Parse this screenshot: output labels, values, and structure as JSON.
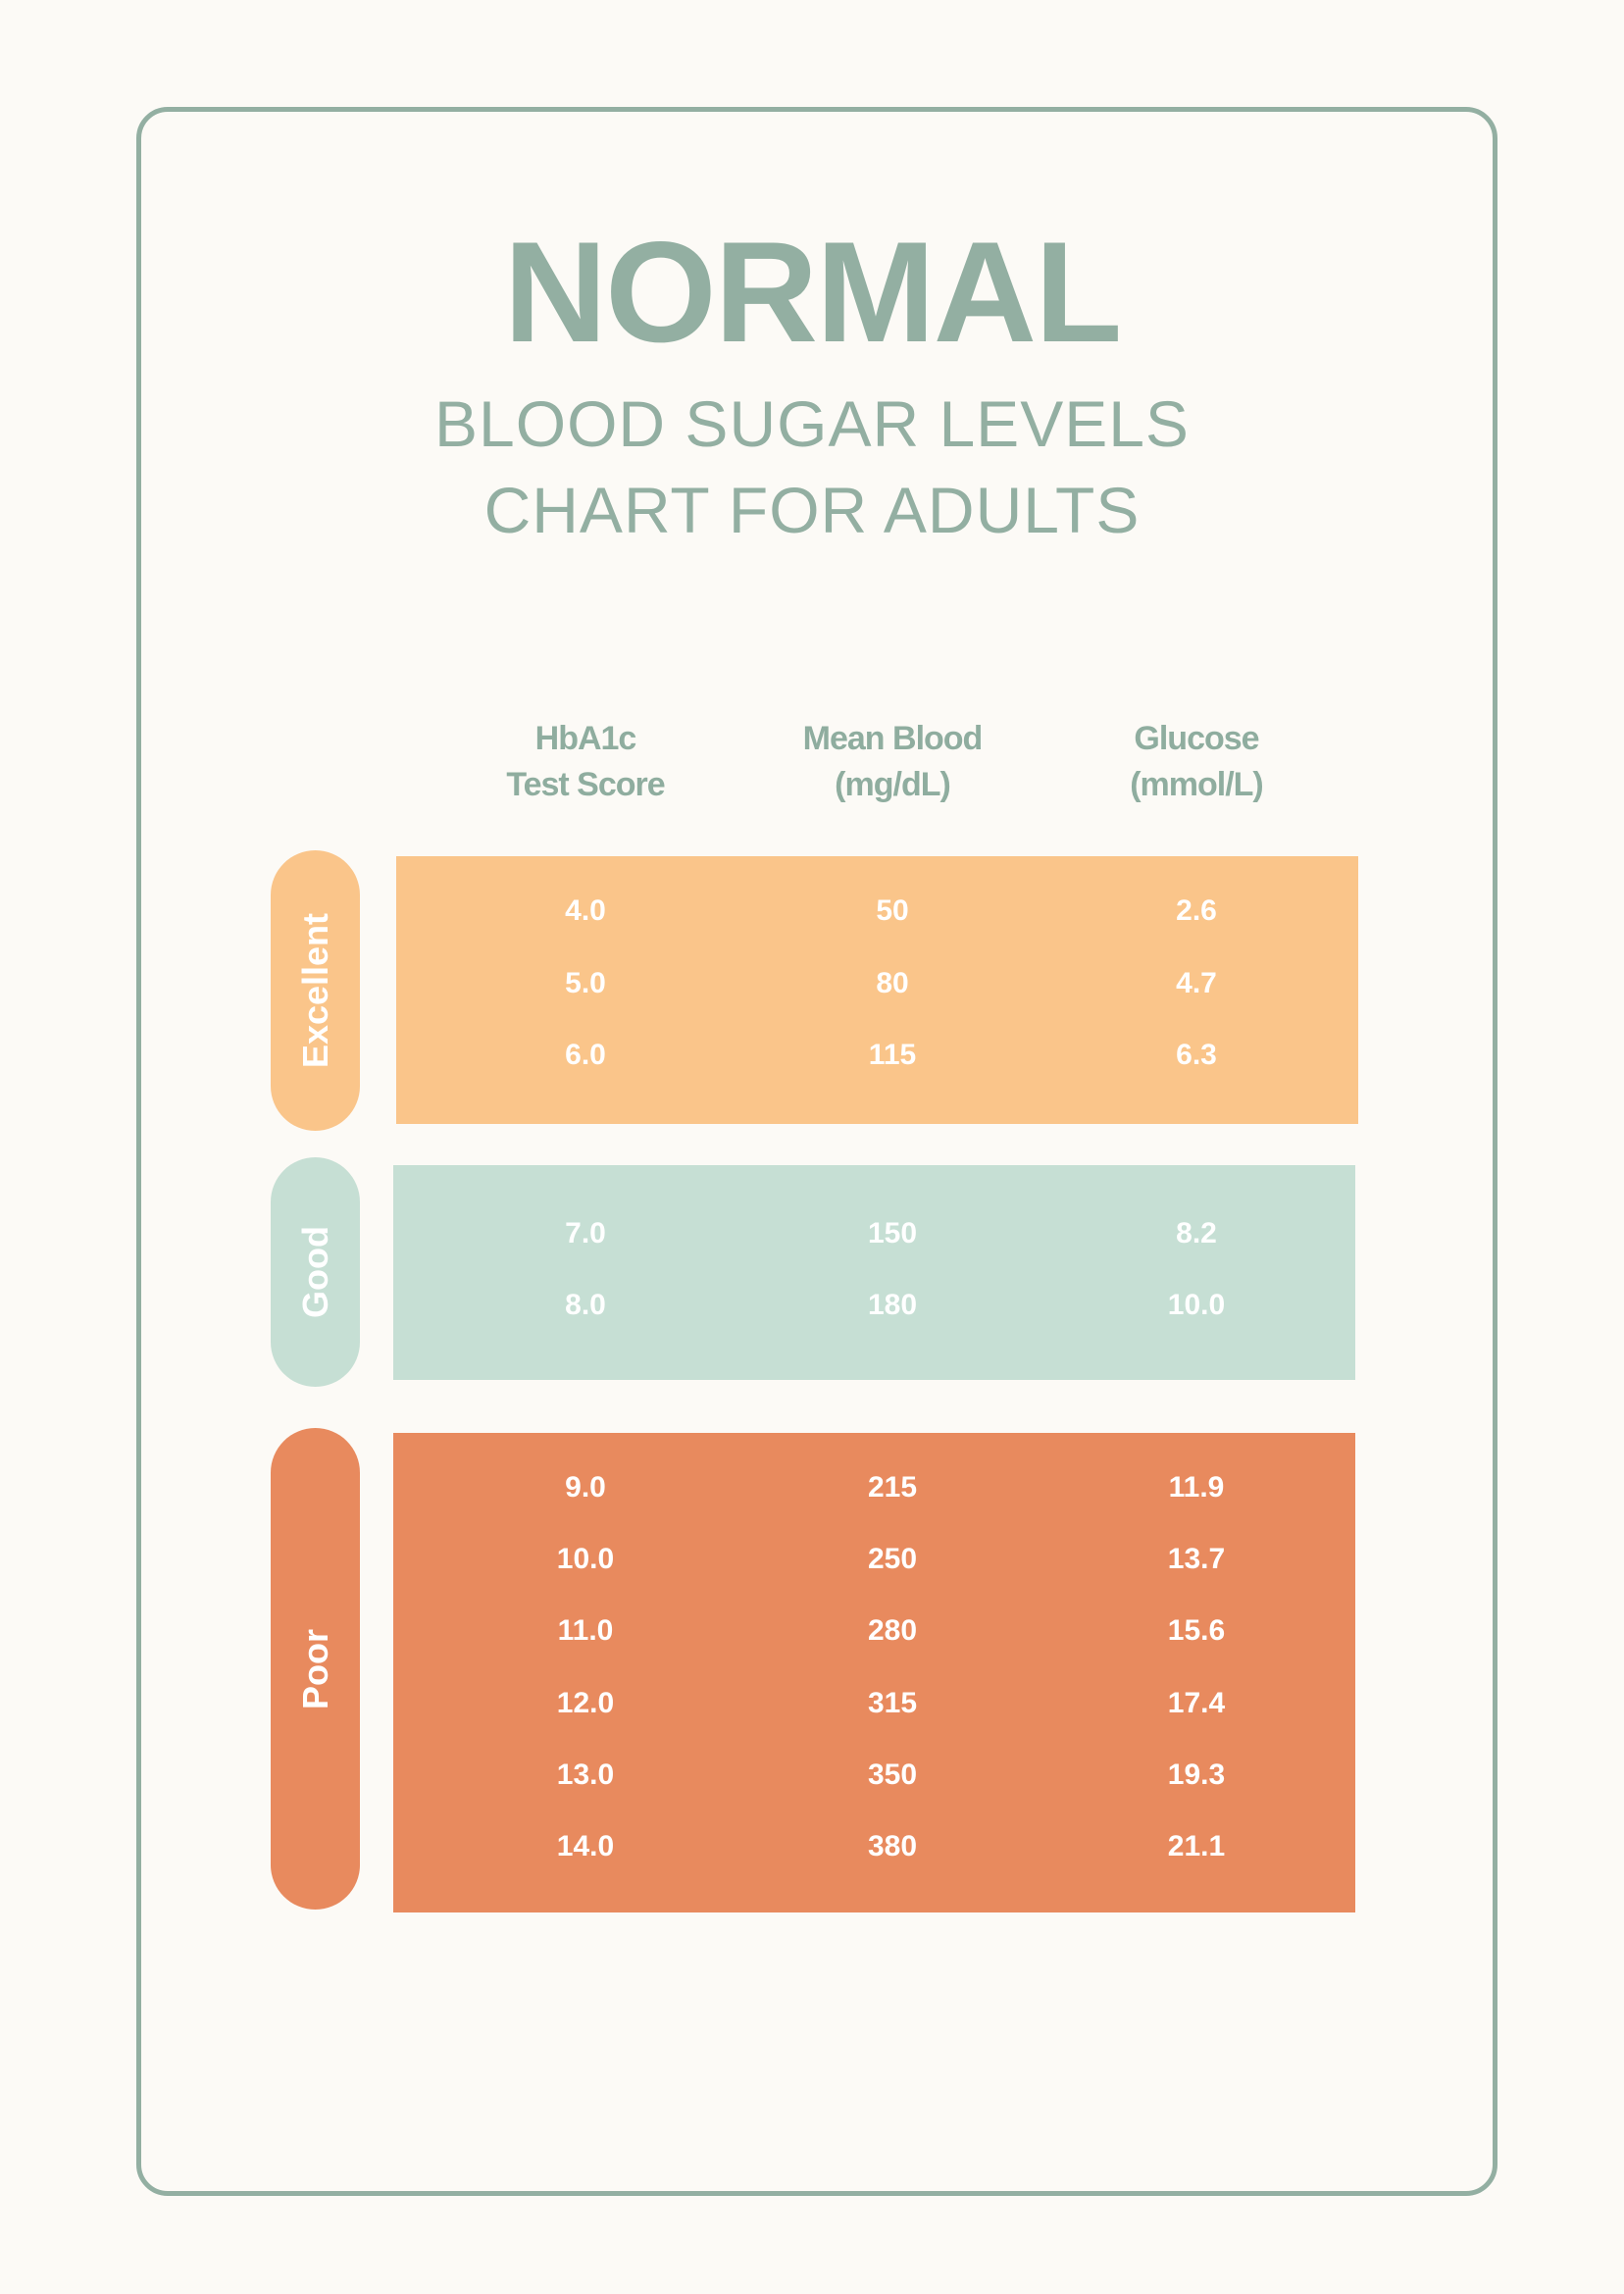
{
  "title": {
    "main": "NORMAL",
    "line1": "BLOOD SUGAR LEVELS",
    "line2": "CHART FOR ADULTS"
  },
  "headers": [
    {
      "line1": "HbA1c",
      "line2": "Test Score"
    },
    {
      "line1": "Mean Blood",
      "line2": "(mg/dL)"
    },
    {
      "line1": "Glucose",
      "line2": "(mmol/L)"
    }
  ],
  "groups": [
    {
      "label": "Excellent",
      "color": "#FAC58A",
      "rows": [
        [
          "4.0",
          "50",
          "2.6"
        ],
        [
          "5.0",
          "80",
          "4.7"
        ],
        [
          "6.0",
          "115",
          "6.3"
        ]
      ]
    },
    {
      "label": "Good",
      "color": "#C6DFD4",
      "rows": [
        [
          "7.0",
          "150",
          "8.2"
        ],
        [
          "8.0",
          "180",
          "10.0"
        ]
      ]
    },
    {
      "label": "Poor",
      "color": "#E88A5E",
      "rows": [
        [
          "9.0",
          "215",
          "11.9"
        ],
        [
          "10.0",
          "250",
          "13.7"
        ],
        [
          "11.0",
          "280",
          "15.6"
        ],
        [
          "12.0",
          "315",
          "17.4"
        ],
        [
          "13.0",
          "350",
          "19.3"
        ],
        [
          "14.0",
          "380",
          "21.1"
        ]
      ]
    }
  ],
  "colors": {
    "accent": "#93AFA2",
    "background": "#FCFAF6"
  }
}
